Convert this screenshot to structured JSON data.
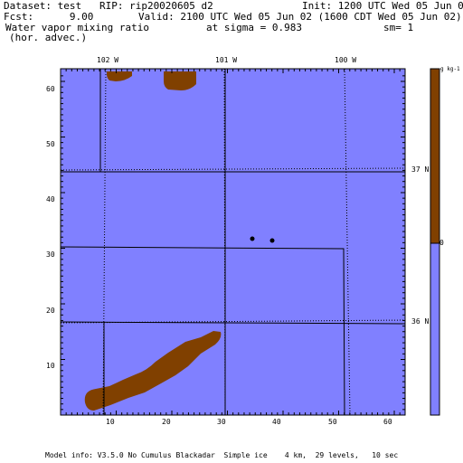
{
  "header": {
    "dataset": "Dataset: test   RIP: rip20020605 d2",
    "init": "Init: 1200 UTC Wed 05 Jun 02",
    "fcst": "Fcst:      9.00",
    "valid": "Valid: 2100 UTC Wed 05 Jun 02 (1600 CDT Wed 05 Jun 02)",
    "field_line1": "Water vapor mixing ratio",
    "field_line2": "(hor. advec.)",
    "sigma": "at sigma = 0.983",
    "smoothing": "sm= 1"
  },
  "map": {
    "x_ticks": [
      "10",
      "20",
      "30",
      "40",
      "50",
      "60"
    ],
    "y_ticks": [
      "10",
      "20",
      "30",
      "40",
      "50",
      "60"
    ],
    "lon_labels": [
      "102 W",
      "101 W",
      "100 W"
    ],
    "lat_labels": [
      "37 N",
      "36 N"
    ],
    "colors": {
      "background": "#8080ff",
      "positive": "#804000",
      "border": "#000000"
    }
  },
  "colorbar": {
    "top_label": "g kg-1",
    "mid_label": "0",
    "colors": [
      "#804000",
      "#8080ff"
    ]
  },
  "footer": {
    "model_info": "Model info: V3.5.0 No Cumulus Blackadar  Simple ice    4 km,  29 levels,   10 sec"
  }
}
